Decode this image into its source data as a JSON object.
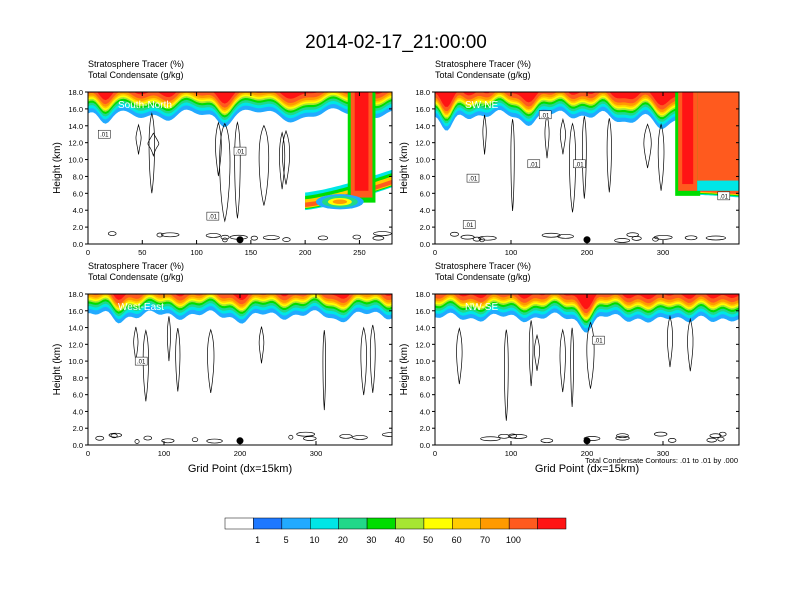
{
  "title": "2014-02-17_21:00:00",
  "colors": {
    "bins": [
      "#ffffff",
      "#1e78ff",
      "#22aaff",
      "#00e6e6",
      "#21d889",
      "#00dd00",
      "#a6e633",
      "#ffff00",
      "#ffcc00",
      "#ff9a00",
      "#ff5a1e",
      "#ff1414"
    ],
    "contour": "#000000",
    "marker": "#000000"
  },
  "chart_data": {
    "type": "heatmap",
    "colorbar": {
      "labels": [
        "1",
        "5",
        "10",
        "20",
        "30",
        "40",
        "50",
        "60",
        "70",
        "100"
      ]
    },
    "contour_note": "Total Condensate Contours: .01 to .01 by .000",
    "panels": [
      {
        "label": "South-North",
        "line1": "Stratosphere Tracer   (%)",
        "line2": "Total Condensate   (g/kg)",
        "ylabel": "Height (km)",
        "xlabel": "",
        "xmax": 280,
        "xticks": [
          "0",
          "50",
          "100",
          "150",
          "200",
          "250"
        ],
        "ylim": [
          0,
          18
        ],
        "yticks": [
          "0.0",
          "2.0",
          "4.0",
          "6.0",
          "8.0",
          "10.0",
          "12.0",
          "14.0",
          "16.0",
          "18.0"
        ],
        "marker_x": 140,
        "contour_labels": [
          {
            "text": ".01",
            "x": 15,
            "y": 13.0
          },
          {
            "text": ".01",
            "x": 140,
            "y": 11.0
          },
          {
            "text": ".01",
            "x": 115,
            "y": 3.3
          }
        ],
        "base": 15.5,
        "dips": [
          {
            "x": 15,
            "w": 8,
            "d": 1.5
          },
          {
            "x": 75,
            "w": 12,
            "d": 0.8
          },
          {
            "x": 125,
            "w": 8,
            "d": 1.2
          },
          {
            "x": 190,
            "w": 18,
            "d": 0.6
          }
        ],
        "wall": {
          "x0": 242,
          "x1": 262,
          "ymin": 5.5
        },
        "blob": {
          "cx": 232,
          "cy": 5.0,
          "rx": 22,
          "ry": 0.9
        },
        "tail": {
          "x0": 200,
          "x1": 280,
          "y_start": 4.5,
          "y_end": 7.2
        }
      },
      {
        "label": "SW-NE",
        "line1": "Stratosphere Tracer   (%)",
        "line2": "Total Condensate   (g/kg)",
        "ylabel": "Height (km)",
        "xlabel": "",
        "xmax": 400,
        "xticks": [
          "0",
          "100",
          "200",
          "300"
        ],
        "ylim": [
          0,
          18
        ],
        "yticks": [
          "0.0",
          "2.0",
          "4.0",
          "6.0",
          "8.0",
          "10.0",
          "12.0",
          "14.0",
          "16.0",
          "18.0"
        ],
        "marker_x": 200,
        "contour_labels": [
          {
            "text": ".01",
            "x": 145,
            "y": 15.3
          },
          {
            "text": ".01",
            "x": 130,
            "y": 9.5
          },
          {
            "text": ".01",
            "x": 190,
            "y": 9.5
          },
          {
            "text": ".01",
            "x": 50,
            "y": 7.8
          },
          {
            "text": ".01",
            "x": 45,
            "y": 2.3
          },
          {
            "text": ".01",
            "x": 380,
            "y": 5.7
          }
        ],
        "base": 15.3,
        "dips": [
          {
            "x": 15,
            "w": 12,
            "d": 2.0
          },
          {
            "x": 120,
            "w": 15,
            "d": 0.8
          },
          {
            "x": 245,
            "w": 15,
            "d": 1.0
          },
          {
            "x": 300,
            "w": 12,
            "d": 2.2
          }
        ],
        "wall": {
          "x0": 320,
          "x1": 345,
          "ymin": 6.3
        },
        "blob": null,
        "tail": {
          "x0": 345,
          "x1": 400,
          "y_start": 6.3,
          "y_end": 6.0
        }
      },
      {
        "label": "West-East",
        "line1": "Stratosphere Tracer   (%)",
        "line2": "Total Condensate   (g/kg)",
        "ylabel": "Height (km)",
        "xlabel": "Grid Point (dx=15km)",
        "xmax": 400,
        "xticks": [
          "0",
          "100",
          "200",
          "300"
        ],
        "ylim": [
          0,
          18
        ],
        "yticks": [
          "0.0",
          "2.0",
          "4.0",
          "6.0",
          "8.0",
          "10.0",
          "12.0",
          "14.0",
          "16.0",
          "18.0"
        ],
        "marker_x": 200,
        "contour_labels": [
          {
            "text": ".01",
            "x": 70,
            "y": 10.0
          }
        ],
        "base": 15.5,
        "dips": [
          {
            "x": 40,
            "w": 10,
            "d": 0.6
          },
          {
            "x": 205,
            "w": 15,
            "d": 0.6
          },
          {
            "x": 330,
            "w": 12,
            "d": 0.5
          }
        ],
        "wall": null,
        "blob": null,
        "tail": null
      },
      {
        "label": "NW-SE",
        "line1": "Stratosphere Tracer   (%)",
        "line2": "Total Condensate   (g/kg)",
        "ylabel": "Height (km)",
        "xlabel": "Grid Point (dx=15km)",
        "xmax": 400,
        "xticks": [
          "0",
          "100",
          "200",
          "300"
        ],
        "ylim": [
          0,
          18
        ],
        "yticks": [
          "0.0",
          "2.0",
          "4.0",
          "6.0",
          "8.0",
          "10.0",
          "12.0",
          "14.0",
          "16.0",
          "18.0"
        ],
        "marker_x": 200,
        "contour_labels": [
          {
            "text": ".01",
            "x": 215,
            "y": 12.5
          }
        ],
        "base": 15.2,
        "dips": [
          {
            "x": 200,
            "w": 12,
            "d": 1.3
          },
          {
            "x": 290,
            "w": 15,
            "d": 0.6
          },
          {
            "x": 370,
            "w": 12,
            "d": 0.8
          }
        ],
        "wall": null,
        "blob": null,
        "tail": null
      }
    ]
  }
}
